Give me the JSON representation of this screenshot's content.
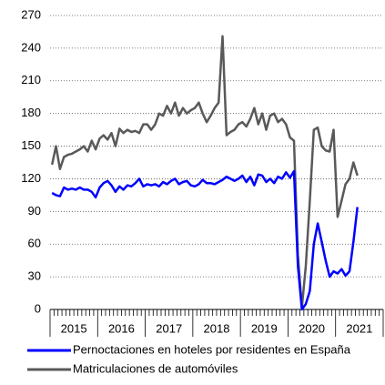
{
  "chart_data": {
    "type": "line",
    "categories": [
      null,
      null,
      null,
      null,
      null,
      null,
      "2015",
      null,
      null,
      null,
      null,
      null,
      null,
      null,
      null,
      null,
      null,
      null,
      "2016",
      null,
      null,
      null,
      null,
      null,
      null,
      null,
      null,
      null,
      null,
      null,
      "2017",
      null,
      null,
      null,
      null,
      null,
      null,
      null,
      null,
      null,
      null,
      null,
      "2018",
      null,
      null,
      null,
      null,
      null,
      null,
      null,
      null,
      null,
      null,
      null,
      "2019",
      null,
      null,
      null,
      null,
      null,
      null,
      null,
      null,
      null,
      null,
      null,
      "2020",
      null,
      null,
      null,
      null,
      null,
      null,
      null,
      null,
      null,
      null,
      null,
      "2021",
      null,
      null,
      null,
      null,
      null
    ],
    "series": [
      {
        "name": "Pernoctaciones en hoteles por residentes en España",
        "color": "#0000ff",
        "values": [
          107,
          105,
          104,
          112,
          110,
          111,
          110,
          112,
          110,
          110,
          108,
          103,
          112,
          116,
          118,
          114,
          108,
          113,
          110,
          114,
          113,
          116,
          120,
          113,
          115,
          114,
          115,
          113,
          117,
          115,
          118,
          120,
          115,
          117,
          118,
          114,
          113,
          115,
          119,
          116,
          116,
          115,
          117,
          119,
          122,
          120,
          118,
          120,
          123,
          117,
          122,
          114,
          124,
          123,
          117,
          120,
          116,
          122,
          120,
          126,
          121,
          127,
          40,
          0,
          5,
          17,
          60,
          79,
          62,
          45,
          30,
          35,
          33,
          37,
          31,
          35,
          62,
          94,
          null,
          null,
          null,
          null,
          null,
          null
        ]
      },
      {
        "name": "Matriculaciones de automóviles",
        "color": "#595959",
        "values": [
          133,
          150,
          129,
          140,
          142,
          143,
          145,
          147,
          150,
          145,
          155,
          147,
          157,
          160,
          156,
          162,
          150,
          166,
          162,
          165,
          163,
          164,
          162,
          170,
          170,
          165,
          170,
          180,
          178,
          187,
          180,
          190,
          178,
          185,
          180,
          183,
          185,
          190,
          180,
          172,
          178,
          185,
          190,
          251,
          160,
          163,
          165,
          170,
          172,
          168,
          175,
          185,
          170,
          180,
          165,
          178,
          180,
          172,
          175,
          170,
          158,
          155,
          50,
          2,
          40,
          100,
          165,
          167,
          150,
          146,
          145,
          165,
          85,
          100,
          115,
          120,
          135,
          123,
          null,
          null,
          null,
          null,
          null,
          null
        ]
      }
    ],
    "ylim": [
      0,
      270
    ],
    "yticks": [
      0,
      30,
      60,
      90,
      120,
      150,
      180,
      210,
      240,
      270
    ],
    "grid": true
  }
}
